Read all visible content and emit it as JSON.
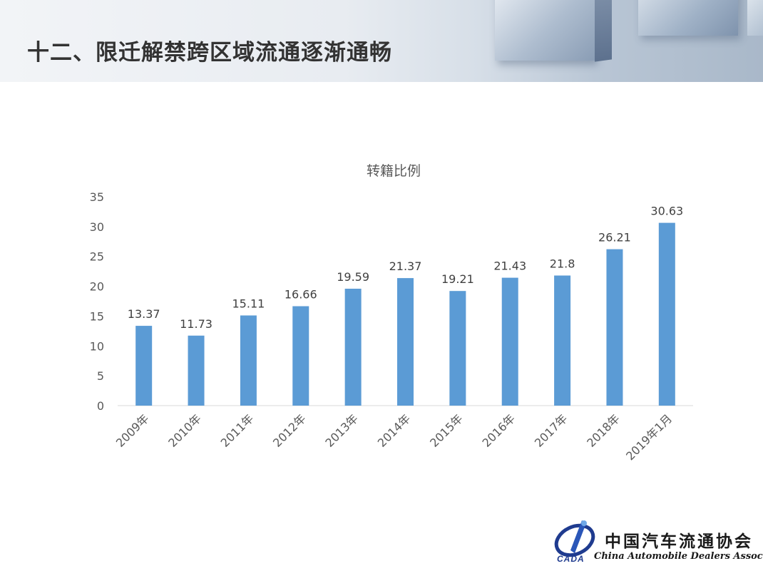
{
  "header": {
    "title": "十二、限迁解禁跨区域流通逐渐通畅"
  },
  "chart_data": {
    "type": "bar",
    "title": "转籍比例",
    "categories": [
      "2009年",
      "2010年",
      "2011年",
      "2012年",
      "2013年",
      "2014年",
      "2015年",
      "2016年",
      "2017年",
      "2018年",
      "2019年1月"
    ],
    "values": [
      13.37,
      11.73,
      15.11,
      16.66,
      19.59,
      21.37,
      19.21,
      21.43,
      21.8,
      26.21,
      30.63
    ],
    "data_labels": [
      "13.37",
      "11.73",
      "15.11",
      "16.66",
      "19.59",
      "21.37",
      "19.21",
      "21.43",
      "21.8",
      "26.21",
      "30.63"
    ],
    "y_ticks": [
      "0",
      "5",
      "10",
      "15",
      "20",
      "25",
      "30",
      "35"
    ],
    "ylim": [
      0,
      35
    ],
    "grid": false,
    "bar_color": "#5b9bd5"
  },
  "logo": {
    "name_cn": "中国汽车流通协会",
    "name_en": "China Automobile Dealers Association",
    "abbr": "CADA"
  }
}
